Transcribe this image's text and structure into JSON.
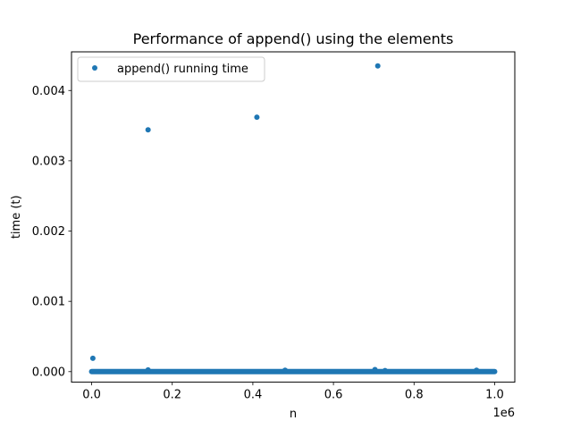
{
  "chart_data": {
    "type": "scatter",
    "title": "Performance of append() using the elements",
    "xlabel": "n",
    "ylabel": "time (t)",
    "x_offset_label": "1e6",
    "xlim": [
      -50000,
      1050000
    ],
    "ylim": [
      -0.00015,
      0.00455
    ],
    "x_ticks": [
      {
        "value": 0,
        "label": "0.0"
      },
      {
        "value": 200000,
        "label": "0.2"
      },
      {
        "value": 400000,
        "label": "0.4"
      },
      {
        "value": 600000,
        "label": "0.6"
      },
      {
        "value": 800000,
        "label": "0.8"
      },
      {
        "value": 1000000,
        "label": "1.0"
      }
    ],
    "y_ticks": [
      {
        "value": 0,
        "label": "0.000"
      },
      {
        "value": 0.001,
        "label": "0.001"
      },
      {
        "value": 0.002,
        "label": "0.002"
      },
      {
        "value": 0.003,
        "label": "0.003"
      },
      {
        "value": 0.004,
        "label": "0.004"
      }
    ],
    "legend": {
      "position": "upper-left"
    },
    "color": "#1f77b4",
    "series": [
      {
        "name": "append() running time",
        "baseline": {
          "x_start": 0,
          "x_end": 1000000,
          "y": 1e-06
        },
        "points": [
          {
            "x": 3000,
            "y": 0.00019
          },
          {
            "x": 140000,
            "y": 0.00344
          },
          {
            "x": 410000,
            "y": 0.00362
          },
          {
            "x": 710000,
            "y": 0.00435
          },
          {
            "x": 140000,
            "y": 2.5e-05
          },
          {
            "x": 480000,
            "y": 2e-05
          },
          {
            "x": 703000,
            "y": 3e-05
          },
          {
            "x": 728000,
            "y": 1.5e-05
          },
          {
            "x": 955000,
            "y": 2e-05
          }
        ]
      }
    ]
  }
}
